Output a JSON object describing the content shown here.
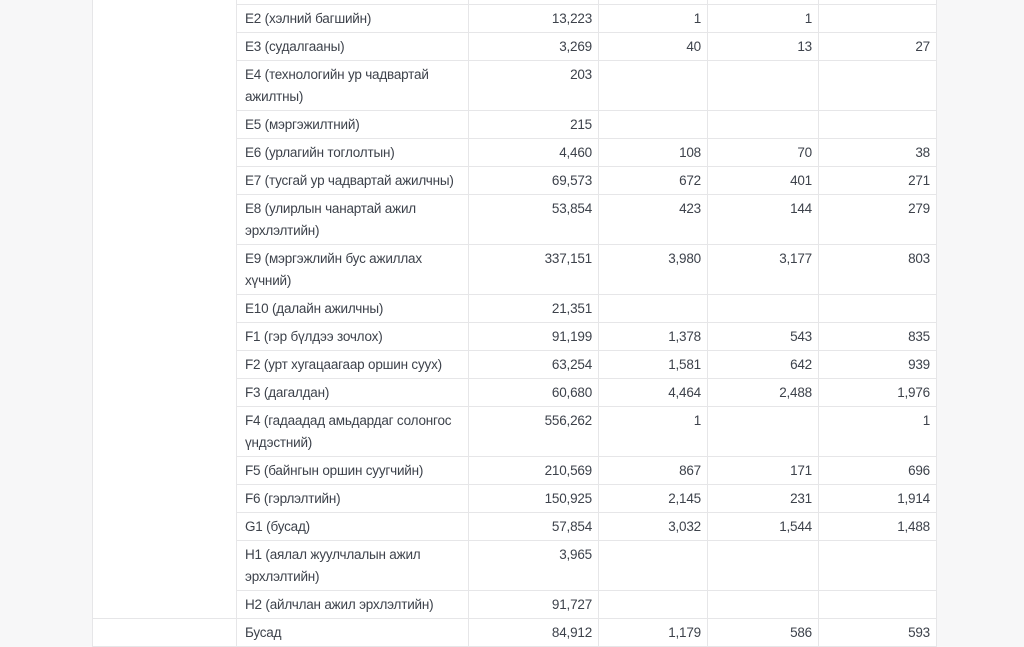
{
  "colors": {
    "page_bg": "#f7f7f8",
    "cell_bg": "#ffffff",
    "border": "#e6e6e8",
    "text": "#3d424b"
  },
  "table": {
    "groups": [
      {
        "rows": [
          {
            "label": "E2 (хэлний багшийн)",
            "values": [
              "13,223",
              "1",
              "1",
              ""
            ]
          },
          {
            "label": "E3 (судалгааны)",
            "values": [
              "3,269",
              "40",
              "13",
              "27"
            ]
          },
          {
            "label": "E4 (технологийн ур чадвартай ажилтны)",
            "values": [
              "203",
              "",
              "",
              ""
            ]
          },
          {
            "label": "E5 (мэргэжилтний)",
            "values": [
              "215",
              "",
              "",
              ""
            ]
          },
          {
            "label": "E6 (урлагийн тоглолтын)",
            "values": [
              "4,460",
              "108",
              "70",
              "38"
            ]
          },
          {
            "label": "E7 (тусгай ур чадвартай ажилчны)",
            "values": [
              "69,573",
              "672",
              "401",
              "271"
            ]
          },
          {
            "label": "E8 (улирлын чанартай ажил эрхлэлтийн)",
            "values": [
              "53,854",
              "423",
              "144",
              "279"
            ]
          },
          {
            "label": "E9 (мэргэжлийн бус ажиллах хүчний)",
            "values": [
              "337,151",
              "3,980",
              "3,177",
              "803"
            ]
          },
          {
            "label": "E10 (далайн ажилчны)",
            "values": [
              "21,351",
              "",
              "",
              ""
            ]
          },
          {
            "label": "F1 (гэр бүлдээ зочлох)",
            "values": [
              "91,199",
              "1,378",
              "543",
              "835"
            ]
          },
          {
            "label": "F2 (урт хугацаагаар оршин суух)",
            "values": [
              "63,254",
              "1,581",
              "642",
              "939"
            ]
          },
          {
            "label": "F3 (дагалдан)",
            "values": [
              "60,680",
              "4,464",
              "2,488",
              "1,976"
            ]
          },
          {
            "label": "F4 (гадаадад амьдардаг солонгос үндэстний)",
            "values": [
              "556,262",
              "1",
              "",
              "1"
            ]
          },
          {
            "label": "F5 (байнгын оршин суугчийн)",
            "values": [
              "210,569",
              "867",
              "171",
              "696"
            ]
          },
          {
            "label": "F6 (гэрлэлтийн)",
            "values": [
              "150,925",
              "2,145",
              "231",
              "1,914"
            ]
          },
          {
            "label": "G1 (бусад)",
            "values": [
              "57,854",
              "3,032",
              "1,544",
              "1,488"
            ]
          },
          {
            "label": "H1 (аялал жуулчлалын ажил эрхлэлтийн)",
            "values": [
              "3,965",
              "",
              "",
              ""
            ]
          },
          {
            "label": "H2 (айлчлан ажил эрхлэлтийн)",
            "values": [
              "91,727",
              "",
              "",
              ""
            ]
          }
        ]
      },
      {
        "rows": [
          {
            "label": "Бусад",
            "values": [
              "84,912",
              "1,179",
              "586",
              "593"
            ]
          }
        ]
      }
    ]
  }
}
